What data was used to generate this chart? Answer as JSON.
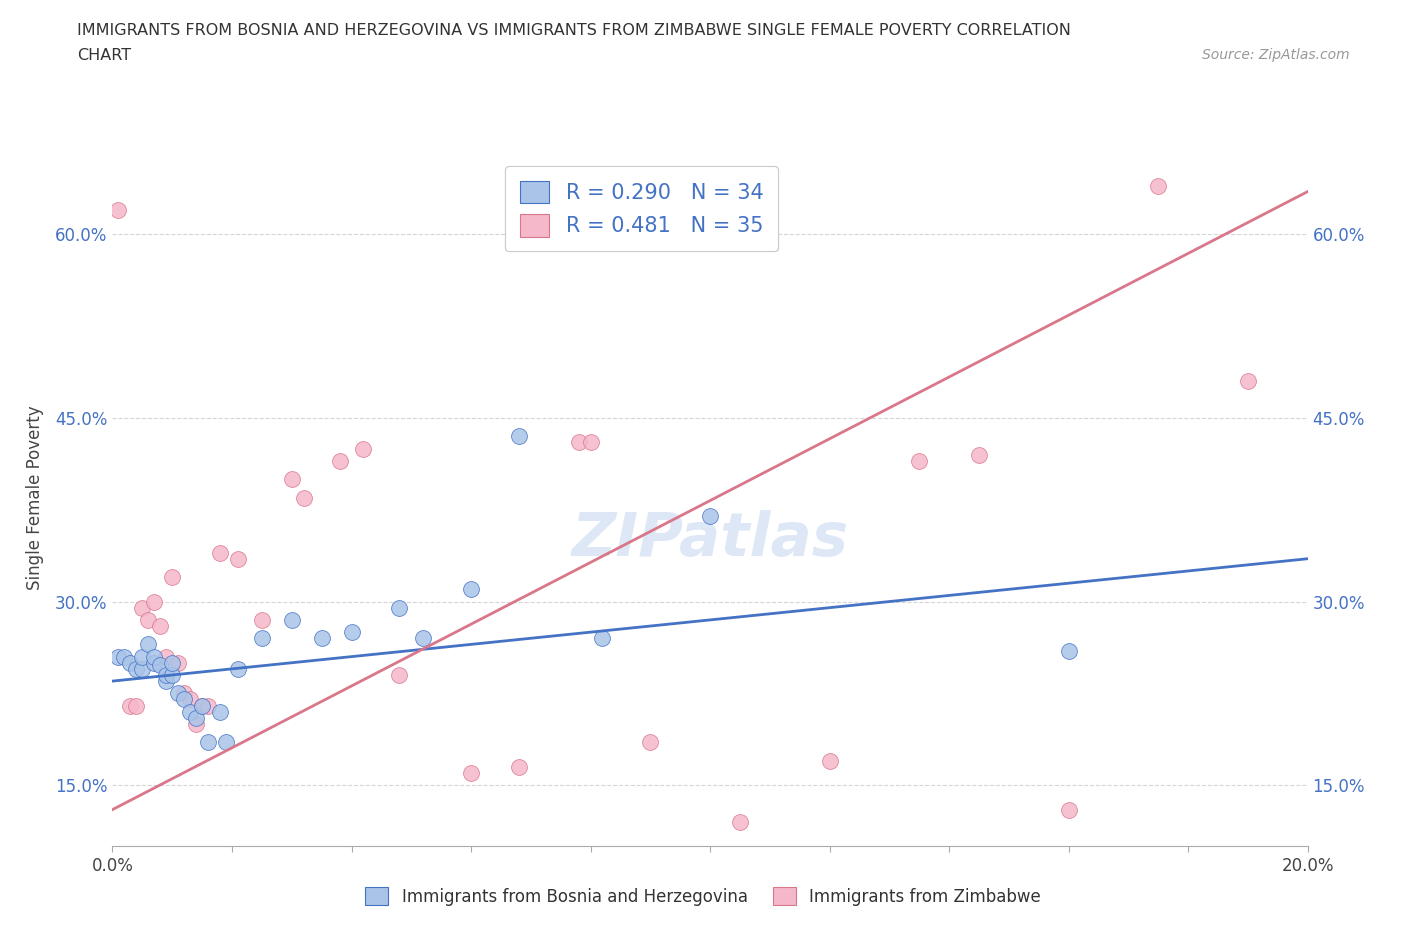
{
  "title_line1": "IMMIGRANTS FROM BOSNIA AND HERZEGOVINA VS IMMIGRANTS FROM ZIMBABWE SINGLE FEMALE POVERTY CORRELATION",
  "title_line2": "CHART",
  "source": "Source: ZipAtlas.com",
  "ylabel": "Single Female Poverty",
  "xlim": [
    0.0,
    0.2
  ],
  "ylim": [
    0.1,
    0.67
  ],
  "xticks": [
    0.0,
    0.02,
    0.04,
    0.06,
    0.08,
    0.1,
    0.12,
    0.14,
    0.16,
    0.18,
    0.2
  ],
  "xticklabels_show": [
    "0.0%",
    "20.0%"
  ],
  "yticks": [
    0.15,
    0.3,
    0.45,
    0.6
  ],
  "yticklabels": [
    "15.0%",
    "30.0%",
    "45.0%",
    "60.0%"
  ],
  "color_bosnia": "#aac4e8",
  "color_zimbabwe": "#f5b8ca",
  "line_color_bosnia": "#4472c4",
  "line_color_zimbabwe": "#d9768a",
  "tick_color": "#4472c4",
  "R_bosnia": 0.29,
  "N_bosnia": 34,
  "R_zimbabwe": 0.481,
  "N_zimbabwe": 35,
  "watermark": "ZIPatlas",
  "bosnia_x": [
    0.001,
    0.002,
    0.003,
    0.004,
    0.005,
    0.005,
    0.006,
    0.007,
    0.007,
    0.008,
    0.009,
    0.009,
    0.01,
    0.01,
    0.011,
    0.012,
    0.013,
    0.014,
    0.015,
    0.016,
    0.018,
    0.019,
    0.021,
    0.025,
    0.03,
    0.035,
    0.04,
    0.048,
    0.052,
    0.06,
    0.068,
    0.082,
    0.1,
    0.16
  ],
  "bosnia_y": [
    0.255,
    0.255,
    0.25,
    0.245,
    0.245,
    0.255,
    0.265,
    0.25,
    0.255,
    0.248,
    0.235,
    0.24,
    0.24,
    0.25,
    0.225,
    0.22,
    0.21,
    0.205,
    0.215,
    0.185,
    0.21,
    0.185,
    0.245,
    0.27,
    0.285,
    0.27,
    0.275,
    0.295,
    0.27,
    0.31,
    0.435,
    0.27,
    0.37,
    0.26
  ],
  "zimbabwe_x": [
    0.001,
    0.003,
    0.004,
    0.005,
    0.006,
    0.007,
    0.008,
    0.009,
    0.01,
    0.011,
    0.012,
    0.013,
    0.014,
    0.015,
    0.016,
    0.018,
    0.021,
    0.025,
    0.03,
    0.032,
    0.038,
    0.042,
    0.048,
    0.06,
    0.068,
    0.078,
    0.08,
    0.09,
    0.105,
    0.12,
    0.135,
    0.145,
    0.16,
    0.175,
    0.19
  ],
  "zimbabwe_y": [
    0.62,
    0.215,
    0.215,
    0.295,
    0.285,
    0.3,
    0.28,
    0.255,
    0.32,
    0.25,
    0.225,
    0.22,
    0.2,
    0.215,
    0.215,
    0.34,
    0.335,
    0.285,
    0.4,
    0.385,
    0.415,
    0.425,
    0.24,
    0.16,
    0.165,
    0.43,
    0.43,
    0.185,
    0.12,
    0.17,
    0.415,
    0.42,
    0.13,
    0.64,
    0.48
  ],
  "bosnia_trend_x0": 0.0,
  "bosnia_trend_y0": 0.235,
  "bosnia_trend_x1": 0.2,
  "bosnia_trend_y1": 0.335,
  "zimbabwe_trend_x0": 0.0,
  "zimbabwe_trend_y0": 0.13,
  "zimbabwe_trend_x1": 0.2,
  "zimbabwe_trend_y1": 0.635
}
